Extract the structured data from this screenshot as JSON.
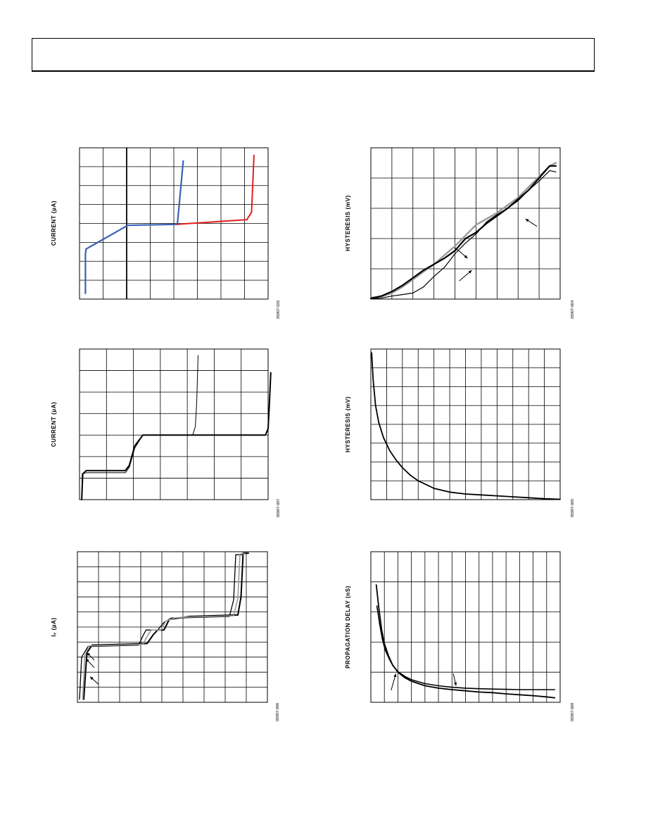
{
  "page": {
    "header_text": ""
  },
  "colors": {
    "grid": "#000000",
    "blue": "#3a62b4",
    "red": "#e02020",
    "black": "#000000",
    "gray": "#9a9a9a"
  },
  "chart_data": [
    {
      "id": "c1",
      "type": "line",
      "ylabel": "CURRENT (µA)",
      "xlabel": "",
      "code": "05907-026",
      "xlim": [
        0,
        8
      ],
      "ylim": [
        0,
        8
      ],
      "xdiv": 8,
      "ydiv": 8,
      "extra_vlines": [
        2
      ],
      "series": [
        {
          "color": "blue",
          "width": 2.2,
          "x": [
            0.25,
            0.25,
            0.28,
            2.05,
            4.15,
            4.2,
            4.4
          ],
          "y": [
            0.3,
            2.4,
            2.65,
            3.9,
            3.95,
            4.6,
            7.3
          ]
        },
        {
          "color": "red",
          "width": 2.0,
          "x": [
            4.15,
            7.1,
            7.3,
            7.4
          ],
          "y": [
            3.95,
            4.2,
            4.6,
            7.6
          ]
        }
      ]
    },
    {
      "id": "c2",
      "type": "line",
      "ylabel": "CURRENT (µA)",
      "xlabel": "",
      "code": "05907-007",
      "xlim": [
        0,
        7
      ],
      "ylim": [
        0,
        7
      ],
      "xdiv": 7,
      "ydiv": 7,
      "extra_vlines": [],
      "series": [
        {
          "color": "black",
          "width": 2.0,
          "x": [
            0.08,
            0.12,
            0.25,
            1.7,
            1.85,
            2.05,
            2.35,
            6.9,
            7.0,
            7.05,
            7.1
          ],
          "y": [
            0,
            1.2,
            1.35,
            1.35,
            1.6,
            2.5,
            3.0,
            3.0,
            3.3,
            4.5,
            5.9
          ]
        },
        {
          "color": "black",
          "width": 1.0,
          "x": [
            0.08,
            0.1,
            0.25,
            1.7,
            1.85,
            2.05,
            2.35,
            4.2,
            4.3,
            4.35,
            4.4
          ],
          "y": [
            0,
            1.2,
            1.25,
            1.25,
            1.5,
            2.4,
            3.0,
            3.0,
            3.4,
            4.5,
            6.7
          ]
        }
      ]
    },
    {
      "id": "c3",
      "type": "line",
      "ylabel": "Iₑ (µA)",
      "xlabel": "",
      "code": "05907-006",
      "xlim": [
        0,
        9
      ],
      "ylim": [
        0,
        10
      ],
      "xdiv": 9,
      "ydiv": 10,
      "extra_vlines": [],
      "series": [
        {
          "color": "black",
          "width": 2.0,
          "x": [
            0.3,
            0.45,
            0.7,
            3.3,
            3.6,
            3.8,
            4.1,
            4.35,
            4.8,
            5.3,
            7.6,
            7.75,
            7.85,
            8.1
          ],
          "y": [
            0.2,
            3.3,
            3.8,
            3.9,
            4.5,
            4.8,
            4.8,
            5.5,
            5.6,
            5.7,
            5.8,
            7.0,
            9.9,
            9.9
          ]
        },
        {
          "color": "black",
          "width": 1.3,
          "x": [
            0.1,
            0.2,
            0.5,
            2.9,
            3.1,
            3.25,
            3.8,
            4.1,
            4.45,
            4.7,
            7.2,
            7.4,
            7.5,
            7.8
          ],
          "y": [
            0.2,
            3.0,
            3.7,
            3.8,
            4.4,
            4.8,
            4.8,
            5.3,
            5.6,
            5.6,
            5.7,
            6.8,
            9.8,
            9.8
          ]
        },
        {
          "color": "gray",
          "width": 1.6,
          "x": [
            0.25,
            0.35,
            0.55,
            3.1,
            3.35,
            3.5,
            3.95,
            4.2,
            4.6,
            5.0,
            7.4,
            7.6,
            7.7,
            7.95
          ],
          "y": [
            0.2,
            3.1,
            3.75,
            3.85,
            4.5,
            4.8,
            4.8,
            5.4,
            5.6,
            5.65,
            5.75,
            6.9,
            9.85,
            9.85
          ]
        }
      ],
      "annotations": [
        {
          "x1": 0.8,
          "y1": 2.8,
          "x2": 0.45,
          "y2": 3.3
        },
        {
          "x1": 0.8,
          "y1": 2.3,
          "x2": 0.4,
          "y2": 2.9
        },
        {
          "x1": 1.0,
          "y1": 1.2,
          "x2": 0.6,
          "y2": 1.7
        }
      ]
    },
    {
      "id": "c4",
      "type": "line",
      "ylabel": "HYSTERESIS (mV)",
      "xlabel": "",
      "code": "05907-004",
      "xlim": [
        0,
        9
      ],
      "ylim": [
        0,
        5
      ],
      "xdiv": 9,
      "ydiv": 5,
      "extra_vlines": [],
      "series": [
        {
          "color": "gray",
          "width": 2.4,
          "x": [
            0,
            0.5,
            1,
            1.5,
            2,
            2.5,
            3,
            3.5,
            4,
            4.5,
            5,
            5.5,
            6,
            6.5,
            7,
            7.5,
            8,
            8.5,
            8.8
          ],
          "y": [
            0.05,
            0.08,
            0.2,
            0.4,
            0.65,
            0.9,
            1.15,
            1.45,
            1.75,
            2.1,
            2.45,
            2.65,
            2.85,
            3.1,
            3.35,
            3.7,
            4.05,
            4.4,
            4.5
          ]
        },
        {
          "color": "black",
          "width": 2.2,
          "x": [
            0,
            0.5,
            1,
            1.5,
            2,
            2.5,
            3,
            3.5,
            4,
            4.5,
            5,
            5.5,
            6,
            6.5,
            7,
            7.5,
            8,
            8.5,
            8.8
          ],
          "y": [
            0.02,
            0.1,
            0.25,
            0.45,
            0.7,
            0.95,
            1.15,
            1.35,
            1.6,
            2.0,
            2.2,
            2.5,
            2.75,
            3.0,
            3.3,
            3.6,
            4.0,
            4.4,
            4.4
          ]
        },
        {
          "color": "black",
          "width": 1.2,
          "x": [
            0,
            0.5,
            1,
            1.5,
            2,
            2.5,
            3,
            3.5,
            4,
            4.5,
            5,
            5.5,
            6,
            6.5,
            7,
            7.5,
            8,
            8.5,
            8.8
          ],
          "y": [
            0.02,
            0.03,
            0.1,
            0.15,
            0.2,
            0.4,
            0.75,
            1.05,
            1.5,
            1.85,
            2.15,
            2.55,
            2.8,
            3.0,
            3.25,
            3.6,
            3.9,
            4.25,
            4.2
          ]
        }
      ],
      "annotations": [
        {
          "x1": 4.0,
          "y1": 1.7,
          "x2": 4.6,
          "y2": 1.35
        },
        {
          "x1": 4.2,
          "y1": 0.6,
          "x2": 4.8,
          "y2": 0.95
        },
        {
          "x1": 7.9,
          "y1": 2.4,
          "x2": 7.35,
          "y2": 2.65
        }
      ]
    },
    {
      "id": "c5",
      "type": "line",
      "ylabel": "HYSTERESIS (mV)",
      "xlabel": "",
      "code": "05907-005",
      "xlim": [
        0,
        12
      ],
      "ylim": [
        0,
        8
      ],
      "xdiv": 12,
      "ydiv": 8,
      "extra_vlines": [],
      "series": [
        {
          "color": "black",
          "width": 1.8,
          "x": [
            0.05,
            0.15,
            0.3,
            0.5,
            0.8,
            1.2,
            1.6,
            2,
            2.5,
            3,
            3.5,
            4,
            5,
            6,
            7,
            8,
            9,
            10,
            11,
            12
          ],
          "y": [
            7.8,
            6.3,
            5.0,
            4.1,
            3.3,
            2.6,
            2.1,
            1.7,
            1.3,
            1.0,
            0.8,
            0.6,
            0.4,
            0.3,
            0.25,
            0.2,
            0.15,
            0.1,
            0.05,
            0.02
          ]
        }
      ]
    },
    {
      "id": "c6",
      "type": "line",
      "ylabel": "PROPAGATION DELAY (nS)",
      "xlabel": "",
      "code": "05907-008",
      "xlim": [
        0,
        14
      ],
      "ylim": [
        0,
        5
      ],
      "xdiv": 14,
      "ydiv": 5,
      "extra_vlines": [],
      "series": [
        {
          "color": "black",
          "width": 1.8,
          "x": [
            0.4,
            0.6,
            0.8,
            1,
            1.3,
            1.6,
            2,
            2.5,
            3,
            4,
            5,
            6,
            7,
            8,
            9,
            10,
            11,
            12,
            13,
            13.6
          ],
          "y": [
            3.9,
            3.1,
            2.4,
            1.95,
            1.55,
            1.25,
            1.0,
            0.82,
            0.7,
            0.55,
            0.47,
            0.42,
            0.38,
            0.34,
            0.32,
            0.28,
            0.25,
            0.22,
            0.18,
            0.15
          ]
        },
        {
          "color": "black",
          "width": 1.6,
          "x": [
            0.45,
            0.65,
            0.85,
            1.05,
            1.35,
            1.65,
            2.05,
            2.55,
            3,
            4,
            5,
            6,
            7,
            8,
            9,
            10,
            11,
            12,
            13,
            13.6
          ],
          "y": [
            3.2,
            2.6,
            2.1,
            1.75,
            1.45,
            1.2,
            1.0,
            0.85,
            0.75,
            0.62,
            0.55,
            0.5,
            0.47,
            0.45,
            0.44,
            0.43,
            0.42,
            0.42,
            0.42,
            0.42
          ]
        }
      ],
      "annotations": [
        {
          "x1": 1.5,
          "y1": 0.4,
          "x2": 1.85,
          "y2": 0.95
        },
        {
          "x1": 6.1,
          "y1": 0.95,
          "x2": 6.3,
          "y2": 0.55
        }
      ]
    }
  ]
}
